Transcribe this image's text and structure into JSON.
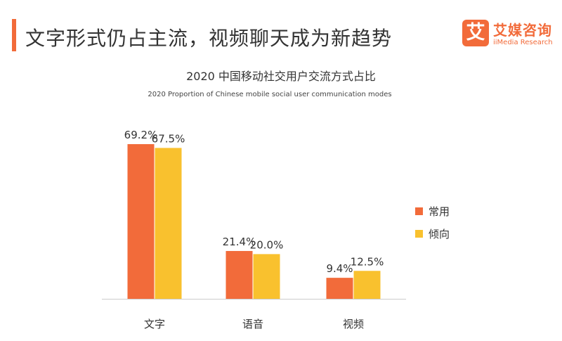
{
  "slide": {
    "title": "文字形式仍占主流，视频聊天成为新趋势"
  },
  "logo": {
    "mark": "艾",
    "name_cn": "艾媒咨询",
    "name_en": "iiMedia Research"
  },
  "colors": {
    "accent": "#f26b3a",
    "series_1": "#f26b3a",
    "series_2": "#f9c12e",
    "axis": "#cccccc"
  },
  "chart_data": {
    "type": "bar",
    "title": "2020 中国移动社交用户交流方式占比",
    "subtitle": "2020 Proportion of Chinese mobile social user communication modes",
    "categories": [
      "文字",
      "语音",
      "视频"
    ],
    "series": [
      {
        "name": "常用",
        "values": [
          69.2,
          21.4,
          9.4
        ],
        "labels": [
          "69.2%",
          "21.4%",
          "9.4%"
        ]
      },
      {
        "name": "倾向",
        "values": [
          67.5,
          20.0,
          12.5
        ],
        "labels": [
          "67.5%",
          "20.0%",
          "12.5%"
        ]
      }
    ],
    "unit": "%",
    "ylim": [
      0,
      70
    ],
    "grid": false,
    "legend": "right"
  }
}
